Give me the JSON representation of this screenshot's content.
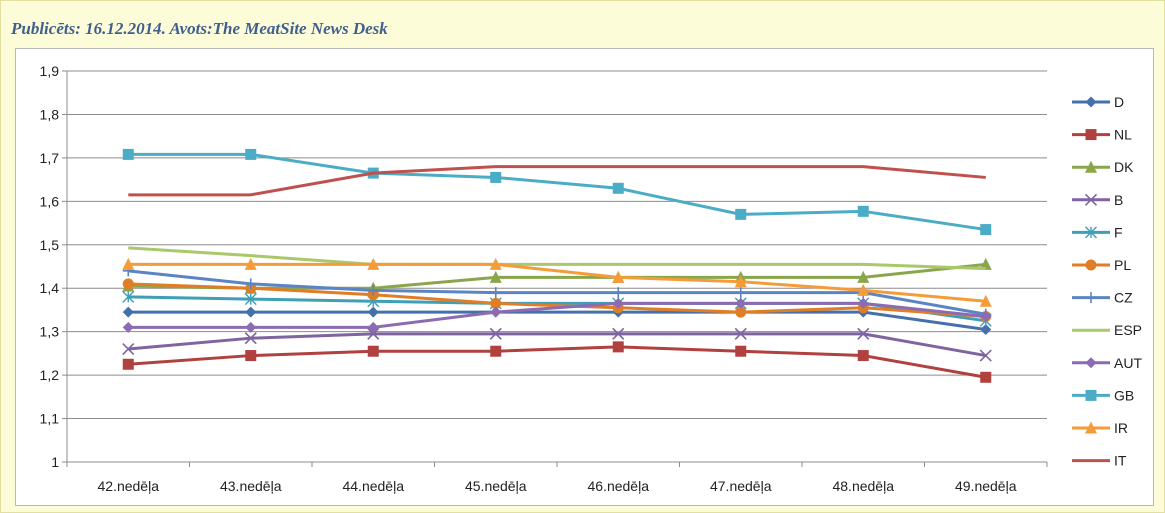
{
  "header": {
    "publication_line": "Publicēts: 16.12.2014. Avots:The MeatSite News Desk"
  },
  "chart_data": {
    "type": "line",
    "title": "",
    "xlabel": "",
    "ylabel": "",
    "ylim": [
      1,
      1.9
    ],
    "ytick_step": 0.1,
    "ytick_labels": [
      "1",
      "1,1",
      "1,2",
      "1,3",
      "1,4",
      "1,5",
      "1,6",
      "1,7",
      "1,8",
      "1,9"
    ],
    "grid": "horizontal",
    "legend_position": "right",
    "categories": [
      "42.nedēļa",
      "43.nedēļa",
      "44.nedēļa",
      "45.nedēļa",
      "46.nedēļa",
      "47.nedēļa",
      "48.nedēļa",
      "49.nedēļa"
    ],
    "series": [
      {
        "name": "D",
        "color": "#4471ac",
        "marker": "diamond",
        "values": [
          1.345,
          1.345,
          1.345,
          1.345,
          1.345,
          1.345,
          1.345,
          1.305
        ]
      },
      {
        "name": "NL",
        "color": "#b0413e",
        "marker": "square",
        "values": [
          1.225,
          1.245,
          1.255,
          1.255,
          1.265,
          1.255,
          1.245,
          1.195
        ]
      },
      {
        "name": "DK",
        "color": "#8aa64b",
        "marker": "triangle",
        "values": [
          1.405,
          1.4,
          1.4,
          1.425,
          1.425,
          1.425,
          1.425,
          1.455
        ]
      },
      {
        "name": "B",
        "color": "#7f64a0",
        "marker": "x",
        "values": [
          1.26,
          1.285,
          1.295,
          1.295,
          1.295,
          1.295,
          1.295,
          1.245
        ]
      },
      {
        "name": "F",
        "color": "#3e9fb6",
        "marker": "asterisk",
        "values": [
          1.38,
          1.375,
          1.37,
          1.365,
          1.365,
          1.365,
          1.365,
          1.325
        ]
      },
      {
        "name": "PL",
        "color": "#e07e28",
        "marker": "circle",
        "values": [
          1.41,
          1.4,
          1.385,
          1.365,
          1.355,
          1.345,
          1.355,
          1.335
        ]
      },
      {
        "name": "CZ",
        "color": "#5b84c4",
        "marker": "plus",
        "values": [
          1.44,
          1.41,
          1.395,
          1.39,
          1.39,
          1.39,
          1.39,
          1.34
        ]
      },
      {
        "name": "ESP",
        "color": "#a9c86a",
        "marker": "none",
        "values": [
          1.493,
          1.475,
          1.455,
          1.455,
          1.455,
          1.455,
          1.455,
          1.445
        ]
      },
      {
        "name": "AUT",
        "color": "#8b6bb1",
        "marker": "diamond",
        "values": [
          1.31,
          1.31,
          1.31,
          1.345,
          1.365,
          1.365,
          1.365,
          1.335
        ]
      },
      {
        "name": "GB",
        "color": "#4bacc6",
        "marker": "square",
        "values": [
          1.708,
          1.708,
          1.665,
          1.655,
          1.63,
          1.57,
          1.577,
          1.535
        ]
      },
      {
        "name": "IR",
        "color": "#f59c3a",
        "marker": "triangle",
        "values": [
          1.455,
          1.455,
          1.455,
          1.455,
          1.425,
          1.415,
          1.395,
          1.37
        ]
      },
      {
        "name": "IT",
        "color": "#c0504d",
        "marker": "none",
        "values": [
          1.615,
          1.615,
          1.665,
          1.68,
          1.68,
          1.68,
          1.68,
          1.655
        ]
      }
    ]
  }
}
